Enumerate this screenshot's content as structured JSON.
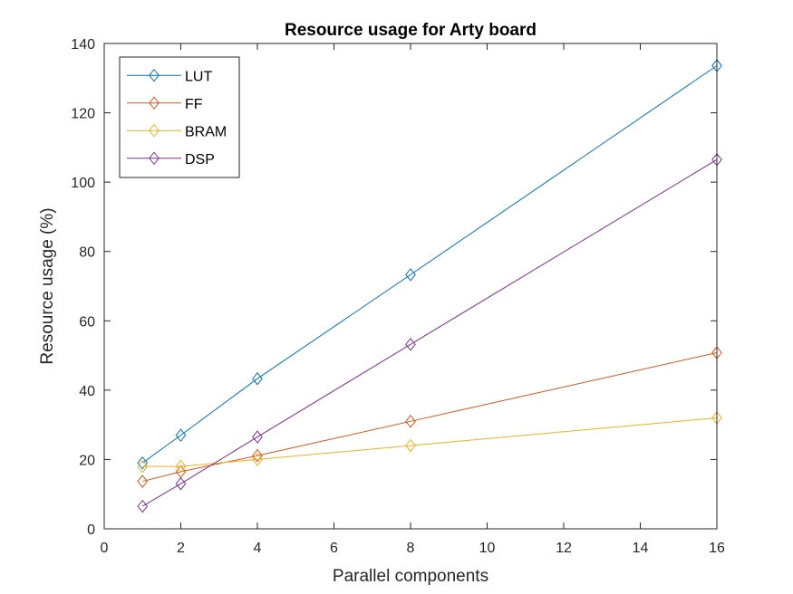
{
  "chart_data": {
    "type": "line",
    "title": "Resource usage for Arty board",
    "xlabel": "Parallel components",
    "ylabel": "Resource usage (%)",
    "xlim": [
      0,
      16
    ],
    "ylim": [
      0,
      140
    ],
    "xticks": [
      0,
      2,
      4,
      6,
      8,
      10,
      12,
      14,
      16
    ],
    "yticks": [
      0,
      20,
      40,
      60,
      80,
      100,
      120,
      140
    ],
    "x": [
      1,
      2,
      4,
      8,
      16
    ],
    "grid": false,
    "legend_position": "top-left",
    "marker": "diamond",
    "series": [
      {
        "name": "LUT",
        "color": "#0072BD",
        "values": [
          19,
          27,
          43.3,
          73.3,
          133.6
        ]
      },
      {
        "name": "FF",
        "color": "#D95319",
        "values": [
          13.7,
          16.5,
          21.1,
          31,
          50.8
        ]
      },
      {
        "name": "BRAM",
        "color": "#EDB120",
        "values": [
          18,
          18,
          20,
          24,
          32
        ]
      },
      {
        "name": "DSP",
        "color": "#7E2F8E",
        "values": [
          6.5,
          13,
          26.5,
          53.2,
          106.5
        ]
      }
    ]
  }
}
